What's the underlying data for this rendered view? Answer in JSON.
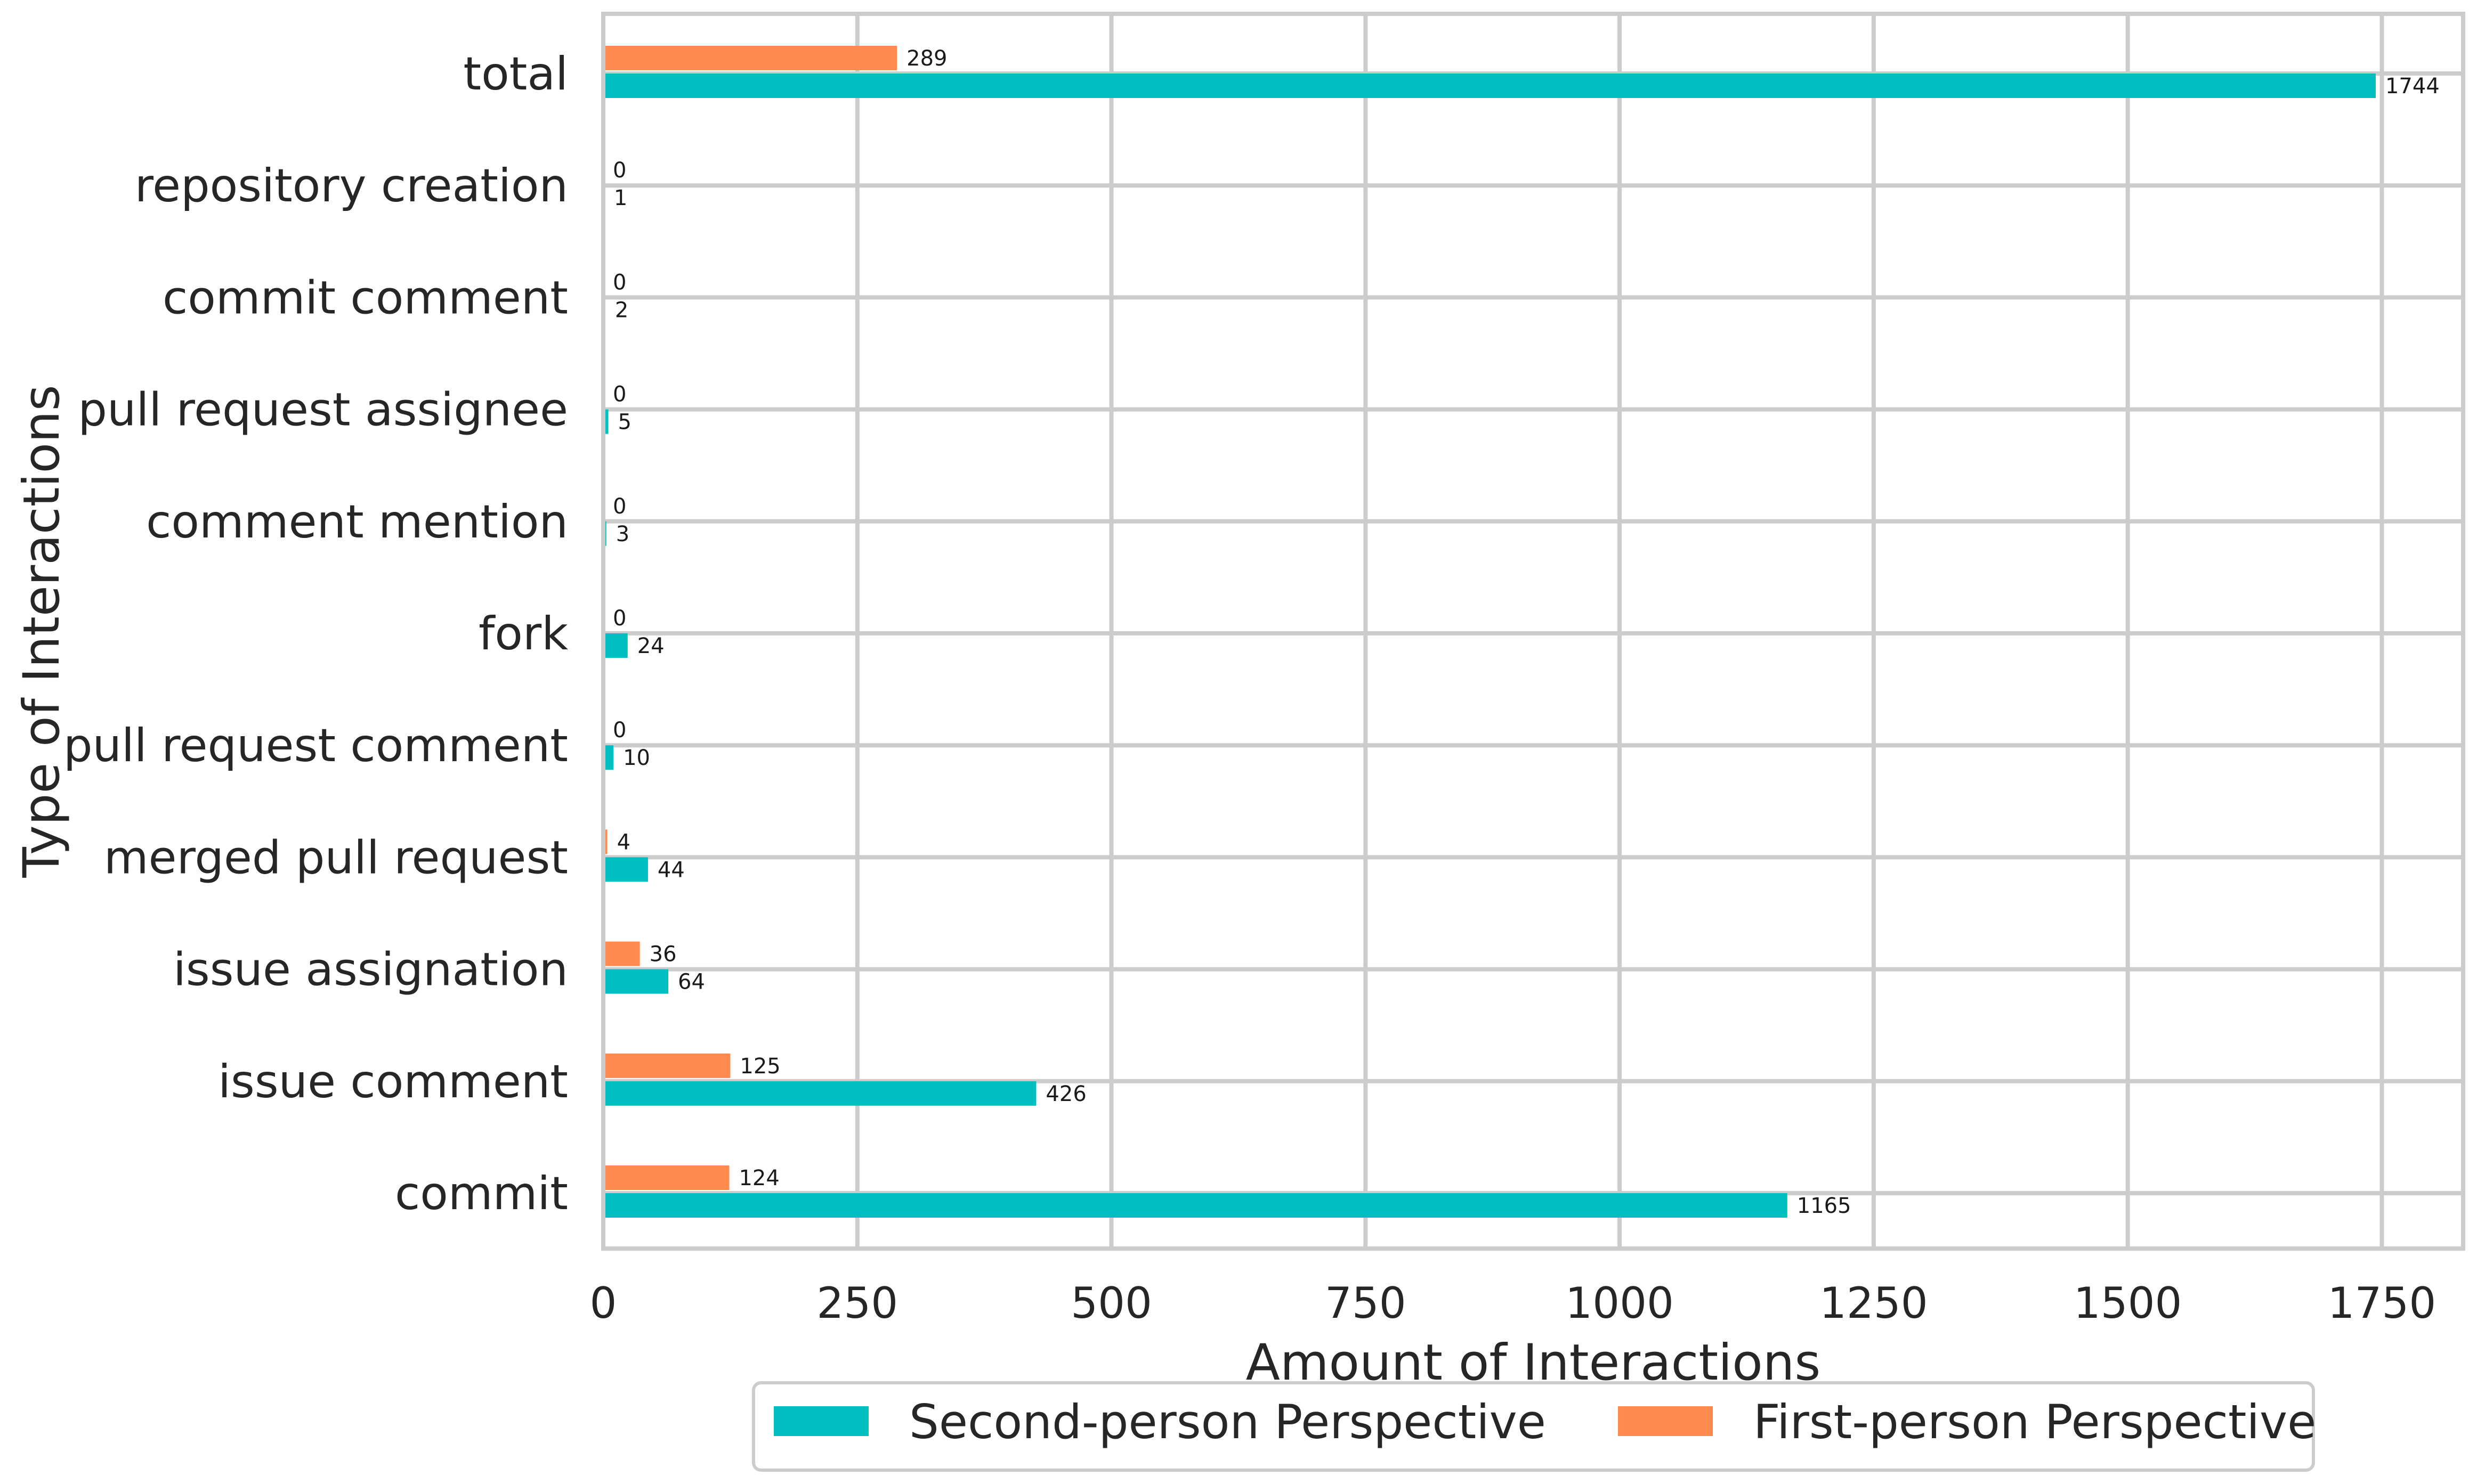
{
  "chart_data": {
    "type": "bar",
    "orientation": "horizontal",
    "categories": [
      "total",
      "repository creation",
      "commit comment",
      "pull request assignee",
      "comment mention",
      "fork",
      "pull request comment",
      "merged pull request",
      "issue assignation",
      "issue comment",
      "commit"
    ],
    "series": [
      {
        "name": "First-person Perspective",
        "color": "#ff8a50",
        "values": [
          289,
          0,
          0,
          0,
          0,
          0,
          0,
          4,
          36,
          125,
          124
        ]
      },
      {
        "name": "Second-person Perspective",
        "color": "#00bfc0",
        "values": [
          1744,
          1,
          2,
          5,
          3,
          24,
          10,
          44,
          64,
          426,
          1165
        ]
      }
    ],
    "xlabel": "Amount of Interactions",
    "ylabel": "Type of Interactions",
    "xlim": [
      0,
      1830
    ],
    "xticks": [
      0,
      250,
      500,
      750,
      1000,
      1250,
      1500,
      1750
    ],
    "grid": true,
    "legend": {
      "placement": "bottom-center",
      "order": [
        "Second-person Perspective",
        "First-person Perspective"
      ]
    }
  }
}
